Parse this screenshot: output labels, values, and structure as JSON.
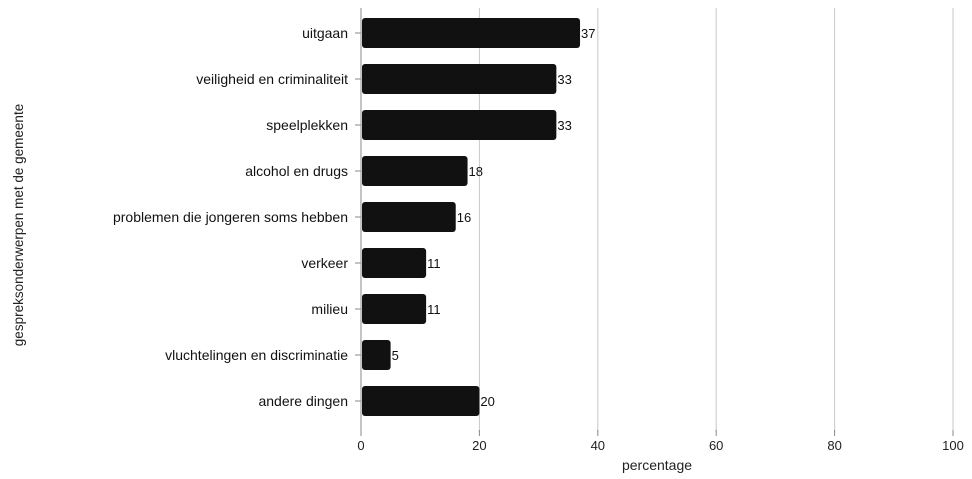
{
  "chart_data": {
    "type": "bar",
    "orientation": "horizontal",
    "title": "",
    "xlabel": "percentage",
    "ylabel": "gespreksonderwerpen met de gemeente",
    "xlim": [
      0,
      100
    ],
    "xticks": [
      0,
      20,
      40,
      60,
      80,
      100
    ],
    "grid": "vertical",
    "legend": "none",
    "bar_color": "#111111",
    "grid_color": "#c8c8c8",
    "categories": [
      "uitgaan",
      "veiligheid en criminaliteit",
      "speelplekken",
      "alcohol en drugs",
      "problemen die jongeren soms hebben",
      "verkeer",
      "milieu",
      "vluchtelingen en discriminatie",
      "andere dingen"
    ],
    "values": [
      37,
      33,
      33,
      18,
      16,
      11,
      11,
      5,
      20
    ],
    "value_labels": [
      "37",
      "33",
      "33",
      "18",
      "16",
      "11",
      "11",
      "5",
      "20"
    ]
  }
}
